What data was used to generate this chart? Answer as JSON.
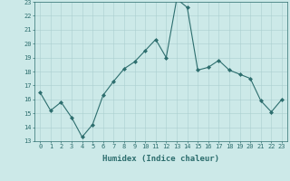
{
  "x": [
    0,
    1,
    2,
    3,
    4,
    5,
    6,
    7,
    8,
    9,
    10,
    11,
    12,
    13,
    14,
    15,
    16,
    17,
    18,
    19,
    20,
    21,
    22,
    23
  ],
  "y": [
    16.5,
    15.2,
    15.8,
    14.7,
    13.3,
    14.2,
    16.3,
    17.3,
    18.2,
    18.7,
    19.5,
    20.3,
    19.0,
    23.2,
    22.6,
    18.1,
    18.3,
    18.8,
    18.1,
    17.8,
    17.5,
    15.9,
    15.1,
    16.0
  ],
  "line_color": "#2d6e6e",
  "marker": "D",
  "marker_size": 2.0,
  "bg_color": "#cce9e8",
  "grid_color": "#aacfcf",
  "xlabel": "Humidex (Indice chaleur)",
  "xlim": [
    -0.5,
    23.5
  ],
  "ylim": [
    13,
    23
  ],
  "yticks": [
    13,
    14,
    15,
    16,
    17,
    18,
    19,
    20,
    21,
    22,
    23
  ],
  "xticks": [
    0,
    1,
    2,
    3,
    4,
    5,
    6,
    7,
    8,
    9,
    10,
    11,
    12,
    13,
    14,
    15,
    16,
    17,
    18,
    19,
    20,
    21,
    22,
    23
  ],
  "tick_fontsize": 5.0,
  "xlabel_fontsize": 6.5
}
